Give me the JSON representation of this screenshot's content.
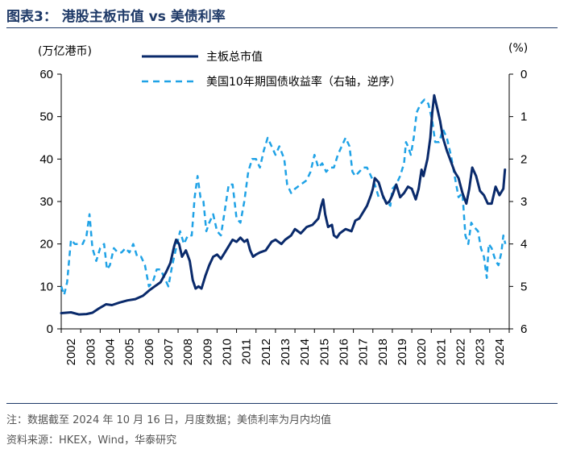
{
  "header": {
    "title": "图表3：  港股主板市值 vs 美债利率"
  },
  "footer": {
    "note": "注：数据截至 2024 年 10 月 16 日，月度数据；美债利率为月内均值",
    "source": "资料来源：HKEX，Wind，华泰研究"
  },
  "chart_data": {
    "type": "line",
    "title": "港股主板市值 vs 美债利率",
    "ylabel_left": "(万亿港币)",
    "ylabel_right": "(%)",
    "ylim_left": [
      0,
      60
    ],
    "ylim_right": [
      6,
      0
    ],
    "right_axis_inverted": true,
    "yticks_left": [
      "0",
      "10",
      "20",
      "30",
      "40",
      "50",
      "60"
    ],
    "yticks_right": [
      "6",
      "5",
      "4",
      "3",
      "2",
      "1",
      "0"
    ],
    "x_tick_labels": [
      "2002",
      "2003",
      "2004",
      "2005",
      "2006",
      "2007",
      "2008",
      "2009",
      "2010",
      "2011",
      "2012",
      "2013",
      "2014",
      "2015",
      "2016",
      "2017",
      "2018",
      "2019",
      "2020",
      "2021",
      "2022",
      "2023",
      "2024"
    ],
    "legend_position": "top-center",
    "series": [
      {
        "name": "主板总市值",
        "axis": "left",
        "color": "#0a2a6b",
        "style": "solid",
        "points": [
          [
            2002.0,
            3.7
          ],
          [
            2002.5,
            3.9
          ],
          [
            2002.9,
            3.4
          ],
          [
            2003.3,
            3.5
          ],
          [
            2003.6,
            3.8
          ],
          [
            2003.9,
            4.7
          ],
          [
            2004.3,
            5.8
          ],
          [
            2004.6,
            5.6
          ],
          [
            2005.0,
            6.2
          ],
          [
            2005.4,
            6.7
          ],
          [
            2005.8,
            7.0
          ],
          [
            2006.2,
            7.8
          ],
          [
            2006.5,
            9.0
          ],
          [
            2006.8,
            10.0
          ],
          [
            2007.1,
            11.0
          ],
          [
            2007.4,
            13.5
          ],
          [
            2007.6,
            15.5
          ],
          [
            2007.8,
            19.5
          ],
          [
            2007.9,
            21.0
          ],
          [
            2008.05,
            20.0
          ],
          [
            2008.2,
            17.0
          ],
          [
            2008.4,
            18.5
          ],
          [
            2008.6,
            16.0
          ],
          [
            2008.75,
            11.5
          ],
          [
            2008.9,
            9.5
          ],
          [
            2009.05,
            10.0
          ],
          [
            2009.2,
            9.5
          ],
          [
            2009.4,
            12.5
          ],
          [
            2009.6,
            15.0
          ],
          [
            2009.8,
            17.0
          ],
          [
            2010.0,
            17.5
          ],
          [
            2010.2,
            16.5
          ],
          [
            2010.4,
            18.0
          ],
          [
            2010.6,
            19.5
          ],
          [
            2010.8,
            21.0
          ],
          [
            2011.0,
            20.5
          ],
          [
            2011.2,
            21.5
          ],
          [
            2011.4,
            20.5
          ],
          [
            2011.55,
            21.0
          ],
          [
            2011.7,
            18.5
          ],
          [
            2011.85,
            17.0
          ],
          [
            2012.0,
            17.5
          ],
          [
            2012.2,
            18.0
          ],
          [
            2012.5,
            18.5
          ],
          [
            2012.8,
            20.5
          ],
          [
            2013.0,
            21.0
          ],
          [
            2013.3,
            20.0
          ],
          [
            2013.5,
            21.0
          ],
          [
            2013.8,
            22.0
          ],
          [
            2014.0,
            23.5
          ],
          [
            2014.3,
            22.5
          ],
          [
            2014.6,
            24.0
          ],
          [
            2014.9,
            24.5
          ],
          [
            2015.2,
            26.0
          ],
          [
            2015.35,
            29.0
          ],
          [
            2015.45,
            30.5
          ],
          [
            2015.55,
            27.0
          ],
          [
            2015.7,
            24.0
          ],
          [
            2015.9,
            24.5
          ],
          [
            2016.0,
            22.0
          ],
          [
            2016.15,
            21.5
          ],
          [
            2016.3,
            22.5
          ],
          [
            2016.6,
            23.5
          ],
          [
            2016.9,
            23.0
          ],
          [
            2017.1,
            25.5
          ],
          [
            2017.3,
            26.0
          ],
          [
            2017.5,
            27.5
          ],
          [
            2017.7,
            29.0
          ],
          [
            2017.9,
            31.5
          ],
          [
            2018.0,
            33.0
          ],
          [
            2018.1,
            35.5
          ],
          [
            2018.3,
            34.5
          ],
          [
            2018.5,
            31.5
          ],
          [
            2018.7,
            29.5
          ],
          [
            2018.85,
            30.0
          ],
          [
            2019.0,
            31.5
          ],
          [
            2019.2,
            34.0
          ],
          [
            2019.4,
            31.0
          ],
          [
            2019.6,
            32.0
          ],
          [
            2019.8,
            33.5
          ],
          [
            2020.0,
            33.0
          ],
          [
            2020.2,
            30.5
          ],
          [
            2020.35,
            33.0
          ],
          [
            2020.5,
            37.5
          ],
          [
            2020.6,
            36.0
          ],
          [
            2020.8,
            40.0
          ],
          [
            2020.95,
            45.0
          ],
          [
            2021.05,
            51.0
          ],
          [
            2021.15,
            55.0
          ],
          [
            2021.3,
            52.0
          ],
          [
            2021.45,
            49.0
          ],
          [
            2021.6,
            45.0
          ],
          [
            2021.8,
            42.0
          ],
          [
            2022.0,
            39.5
          ],
          [
            2022.2,
            37.0
          ],
          [
            2022.4,
            35.5
          ],
          [
            2022.6,
            32.0
          ],
          [
            2022.8,
            29.5
          ],
          [
            2022.95,
            33.0
          ],
          [
            2023.1,
            38.0
          ],
          [
            2023.3,
            36.0
          ],
          [
            2023.5,
            32.5
          ],
          [
            2023.7,
            31.5
          ],
          [
            2023.9,
            29.5
          ],
          [
            2024.1,
            29.5
          ],
          [
            2024.3,
            33.5
          ],
          [
            2024.5,
            31.5
          ],
          [
            2024.7,
            33.0
          ],
          [
            2024.78,
            37.5
          ]
        ]
      },
      {
        "name": "美国10年期国债收益率（右轴，逆序）",
        "axis": "right",
        "color": "#1fa2e6",
        "style": "dashed",
        "points": [
          [
            2002.0,
            5.0
          ],
          [
            2002.15,
            5.2
          ],
          [
            2002.3,
            4.9
          ],
          [
            2002.5,
            3.9
          ],
          [
            2002.7,
            4.0
          ],
          [
            2002.9,
            4.0
          ],
          [
            2003.1,
            4.0
          ],
          [
            2003.3,
            3.8
          ],
          [
            2003.45,
            3.3
          ],
          [
            2003.6,
            4.1
          ],
          [
            2003.8,
            4.4
          ],
          [
            2004.0,
            4.1
          ],
          [
            2004.2,
            4.0
          ],
          [
            2004.35,
            4.6
          ],
          [
            2004.5,
            4.5
          ],
          [
            2004.7,
            4.1
          ],
          [
            2004.9,
            4.2
          ],
          [
            2005.1,
            4.2
          ],
          [
            2005.3,
            4.1
          ],
          [
            2005.5,
            4.2
          ],
          [
            2005.7,
            4.0
          ],
          [
            2005.9,
            4.3
          ],
          [
            2006.1,
            4.3
          ],
          [
            2006.3,
            4.5
          ],
          [
            2006.5,
            5.0
          ],
          [
            2006.7,
            4.9
          ],
          [
            2006.9,
            4.6
          ],
          [
            2007.1,
            4.6
          ],
          [
            2007.3,
            4.8
          ],
          [
            2007.5,
            5.0
          ],
          [
            2007.7,
            4.5
          ],
          [
            2007.9,
            4.1
          ],
          [
            2008.1,
            3.7
          ],
          [
            2008.3,
            4.0
          ],
          [
            2008.5,
            3.8
          ],
          [
            2008.7,
            3.8
          ],
          [
            2008.85,
            2.9
          ],
          [
            2009.0,
            2.4
          ],
          [
            2009.15,
            2.9
          ],
          [
            2009.3,
            3.0
          ],
          [
            2009.45,
            3.7
          ],
          [
            2009.6,
            3.5
          ],
          [
            2009.8,
            3.3
          ],
          [
            2010.0,
            3.7
          ],
          [
            2010.2,
            3.8
          ],
          [
            2010.4,
            3.2
          ],
          [
            2010.6,
            2.6
          ],
          [
            2010.8,
            2.6
          ],
          [
            2011.0,
            3.4
          ],
          [
            2011.2,
            3.5
          ],
          [
            2011.4,
            3.0
          ],
          [
            2011.6,
            2.3
          ],
          [
            2011.8,
            2.0
          ],
          [
            2012.0,
            2.0
          ],
          [
            2012.2,
            2.2
          ],
          [
            2012.4,
            1.8
          ],
          [
            2012.6,
            1.5
          ],
          [
            2012.8,
            1.7
          ],
          [
            2013.0,
            1.9
          ],
          [
            2013.2,
            1.7
          ],
          [
            2013.45,
            2.0
          ],
          [
            2013.6,
            2.6
          ],
          [
            2013.8,
            2.8
          ],
          [
            2014.0,
            2.7
          ],
          [
            2014.3,
            2.6
          ],
          [
            2014.6,
            2.5
          ],
          [
            2014.8,
            2.3
          ],
          [
            2015.0,
            1.9
          ],
          [
            2015.2,
            2.2
          ],
          [
            2015.4,
            2.1
          ],
          [
            2015.6,
            2.3
          ],
          [
            2015.8,
            2.2
          ],
          [
            2016.0,
            2.2
          ],
          [
            2016.2,
            1.9
          ],
          [
            2016.4,
            1.7
          ],
          [
            2016.6,
            1.5
          ],
          [
            2016.8,
            1.7
          ],
          [
            2016.95,
            2.3
          ],
          [
            2017.1,
            2.4
          ],
          [
            2017.3,
            2.3
          ],
          [
            2017.5,
            2.2
          ],
          [
            2017.7,
            2.2
          ],
          [
            2017.9,
            2.4
          ],
          [
            2018.1,
            2.6
          ],
          [
            2018.3,
            2.9
          ],
          [
            2018.5,
            2.9
          ],
          [
            2018.7,
            3.0
          ],
          [
            2018.9,
            3.1
          ],
          [
            2019.0,
            2.7
          ],
          [
            2019.2,
            2.6
          ],
          [
            2019.4,
            2.4
          ],
          [
            2019.6,
            2.1
          ],
          [
            2019.7,
            1.6
          ],
          [
            2019.8,
            1.7
          ],
          [
            2019.95,
            1.9
          ],
          [
            2020.1,
            1.5
          ],
          [
            2020.25,
            0.9
          ],
          [
            2020.45,
            0.7
          ],
          [
            2020.65,
            0.6
          ],
          [
            2020.85,
            0.7
          ],
          [
            2021.05,
            1.1
          ],
          [
            2021.2,
            1.6
          ],
          [
            2021.4,
            1.6
          ],
          [
            2021.6,
            1.3
          ],
          [
            2021.8,
            1.5
          ],
          [
            2022.0,
            1.9
          ],
          [
            2022.2,
            2.4
          ],
          [
            2022.4,
            2.9
          ],
          [
            2022.6,
            2.8
          ],
          [
            2022.75,
            3.8
          ],
          [
            2022.9,
            4.0
          ],
          [
            2023.05,
            3.5
          ],
          [
            2023.2,
            3.6
          ],
          [
            2023.4,
            3.7
          ],
          [
            2023.55,
            4.1
          ],
          [
            2023.7,
            4.3
          ],
          [
            2023.85,
            4.8
          ],
          [
            2023.95,
            4.0
          ],
          [
            2024.1,
            4.1
          ],
          [
            2024.3,
            4.4
          ],
          [
            2024.45,
            4.5
          ],
          [
            2024.6,
            4.2
          ],
          [
            2024.7,
            3.8
          ],
          [
            2024.8,
            4.0
          ]
        ]
      }
    ]
  }
}
